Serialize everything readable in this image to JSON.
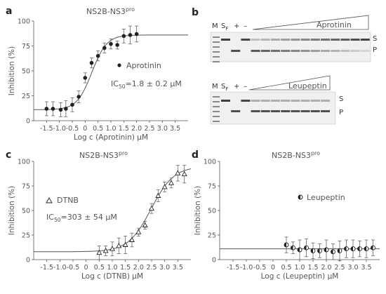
{
  "panels": {
    "a": {
      "letter": "a",
      "title": "NS2B-NS3",
      "title_sup": "pro",
      "legend": "Aprotinin",
      "ic50_prefix": "IC",
      "ic50_sub": "50",
      "ic50_value": "=1.8 ± 0.2 μM"
    },
    "b": {
      "letter": "b",
      "top_label": "Aprotinin",
      "bottom_label": "Leupeptin",
      "lane_m": "M",
      "lane_s": "S",
      "lane_s_sub": "F",
      "lane_plus": "+",
      "lane_minus": "–",
      "band_s": "S",
      "band_p": "P"
    },
    "c": {
      "letter": "c",
      "title": "NS2B-NS3",
      "title_sup": "pro",
      "legend": "DTNB",
      "ic50_prefix": "IC",
      "ic50_sub": "50",
      "ic50_value": "=303 ± 54 μM"
    },
    "d": {
      "letter": "d",
      "title": "NS2B-NS3",
      "title_sup": "pro",
      "legend": "Leupeptin"
    }
  },
  "chart_data": [
    {
      "id": "a",
      "type": "scatter",
      "xlabel": "Log c (Aprotinin) μM",
      "ylabel": "Inhibition (%)",
      "xlim": [
        -2,
        4
      ],
      "ylim": [
        0,
        100
      ],
      "xticks": [
        "-1.5",
        "-1.0",
        "-0.5",
        "0",
        "0.5",
        "1.0",
        "1.5",
        "2.0",
        "2.5",
        "3.0",
        "3.5"
      ],
      "yticks": [
        "0",
        "25",
        "50",
        "75",
        "100"
      ],
      "marker": "filled",
      "fit": {
        "bottom": 11,
        "top": 86,
        "logIC50": 0.26,
        "hill": 1.5
      },
      "series": [
        {
          "name": "Aprotinin",
          "x": [
            -1.5,
            -1.25,
            -0.95,
            -0.75,
            -0.5,
            -0.25,
            0,
            0.25,
            0.5,
            0.75,
            1.0,
            1.25,
            1.5,
            1.75,
            2.0
          ],
          "y": [
            12,
            12,
            11,
            12,
            16,
            24,
            43,
            58,
            65,
            73,
            77,
            76,
            85,
            86,
            87
          ],
          "err": [
            7,
            7,
            7,
            8,
            7,
            6,
            5,
            5,
            5,
            5,
            5,
            4,
            7,
            9,
            8
          ]
        }
      ]
    },
    {
      "id": "c",
      "type": "scatter",
      "xlabel": "Log c (DTNB) μM",
      "ylabel": "Inhibition (%)",
      "xlim": [
        -2,
        4
      ],
      "ylim": [
        0,
        100
      ],
      "xticks": [
        "-1.5",
        "-1.0",
        "-0.5",
        "0",
        "0.5",
        "1.0",
        "1.5",
        "2.0",
        "2.5",
        "3.0",
        "3.5"
      ],
      "yticks": [
        "0",
        "25",
        "50",
        "75",
        "100"
      ],
      "marker": "triangle",
      "fit": {
        "bottom": 8,
        "top": 95,
        "logIC50": 2.48,
        "hill": 1.0
      },
      "series": [
        {
          "name": "DTNB",
          "x": [
            0.5,
            0.75,
            1.0,
            1.25,
            1.5,
            1.75,
            2.0,
            2.25,
            2.5,
            2.75,
            3.0,
            3.25,
            3.5,
            3.75
          ],
          "y": [
            7,
            9,
            11,
            14,
            15,
            20,
            28,
            35,
            52,
            65,
            74,
            78,
            88,
            87
          ],
          "err": [
            7,
            5,
            7,
            8,
            9,
            7,
            4,
            4,
            5,
            6,
            5,
            5,
            8,
            9
          ]
        }
      ]
    },
    {
      "id": "d",
      "type": "scatter",
      "xlabel": "Log c (Leupeptin) μM",
      "ylabel": "Inhibition (%)",
      "xlim": [
        -2,
        4
      ],
      "ylim": [
        0,
        100
      ],
      "xticks": [
        "-1.5",
        "-1.0",
        "-0.5",
        "0",
        "0.5",
        "1.0",
        "1.5",
        "2.0",
        "2.5",
        "3.0",
        "3.5"
      ],
      "yticks": [
        "0",
        "25",
        "50",
        "75",
        "100"
      ],
      "marker": "half",
      "fit": {
        "flat": 11
      },
      "series": [
        {
          "name": "Leupeptin",
          "x": [
            0.5,
            0.75,
            1.0,
            1.25,
            1.5,
            1.75,
            2.0,
            2.25,
            2.5,
            2.75,
            3.0,
            3.25,
            3.5,
            3.75
          ],
          "y": [
            15,
            12,
            10,
            12,
            9,
            9,
            10,
            8,
            9,
            11,
            11,
            11,
            11,
            12
          ],
          "err": [
            8,
            6,
            10,
            9,
            8,
            7,
            10,
            8,
            10,
            9,
            9,
            8,
            9,
            8
          ]
        }
      ]
    }
  ],
  "colors": {
    "axis": "#555555",
    "marker": "#222222",
    "fit": "#555555",
    "gel_bg": "#f2f2f2",
    "band": "#3a3a3a"
  }
}
